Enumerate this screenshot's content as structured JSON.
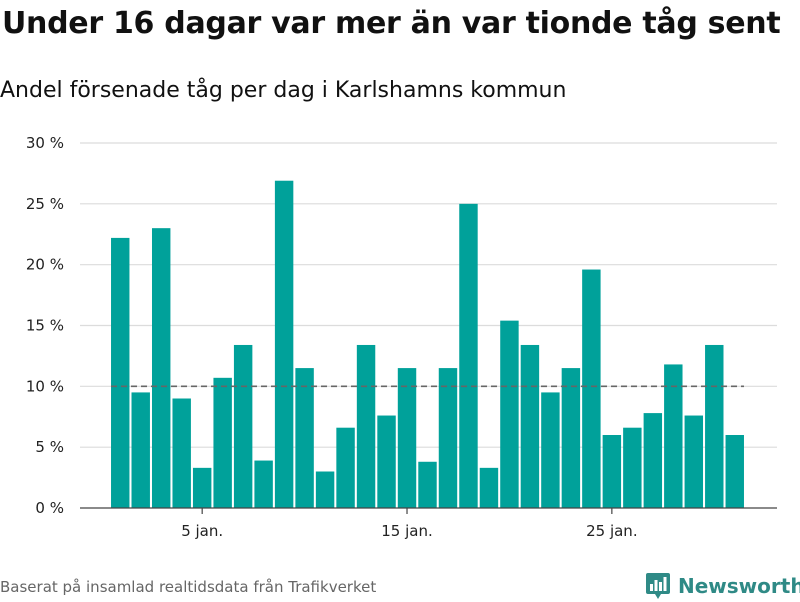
{
  "title": "Under 16 dagar var mer än var tionde tåg sent",
  "subtitle": "Andel försenade tåg per dag i Karlshamns kommun",
  "source": "Baserat på insamlad realtidsdata från Trafikverket",
  "brand": {
    "name": "Newsworthy",
    "icon": "newsworthy-logo-icon",
    "color": "#2f8a86"
  },
  "chart_data": {
    "type": "bar",
    "x": [
      1,
      2,
      3,
      4,
      5,
      6,
      7,
      8,
      9,
      10,
      11,
      12,
      13,
      14,
      15,
      16,
      17,
      18,
      19,
      20,
      21,
      22,
      23,
      24,
      25,
      26,
      27,
      28,
      29,
      30,
      31
    ],
    "values": [
      22.2,
      9.5,
      23.0,
      9.0,
      3.3,
      10.7,
      13.4,
      3.9,
      26.9,
      11.5,
      3.0,
      6.6,
      13.4,
      7.6,
      11.5,
      3.8,
      11.5,
      25.0,
      3.3,
      15.4,
      13.4,
      9.5,
      11.5,
      19.6,
      6.0,
      6.6,
      7.8,
      11.8,
      7.6,
      13.4,
      6.0
    ],
    "bar_color": "#00a19a",
    "reference_line": {
      "value": 10,
      "style": "dashed",
      "color": "#666666"
    },
    "xticks": [
      {
        "x": 5,
        "label": "5 jan."
      },
      {
        "x": 15,
        "label": "15 jan."
      },
      {
        "x": 25,
        "label": "25 jan."
      }
    ],
    "yticks": [
      {
        "y": 0,
        "label": "0 %"
      },
      {
        "y": 5,
        "label": "5 %"
      },
      {
        "y": 10,
        "label": "10 %"
      },
      {
        "y": 15,
        "label": "15 %"
      },
      {
        "y": 20,
        "label": "20 %"
      },
      {
        "y": 25,
        "label": "25 %"
      },
      {
        "y": 30,
        "label": "30 %"
      }
    ],
    "ylim": [
      0,
      30
    ],
    "xlim": [
      0.5,
      31.5
    ],
    "grid": true
  }
}
